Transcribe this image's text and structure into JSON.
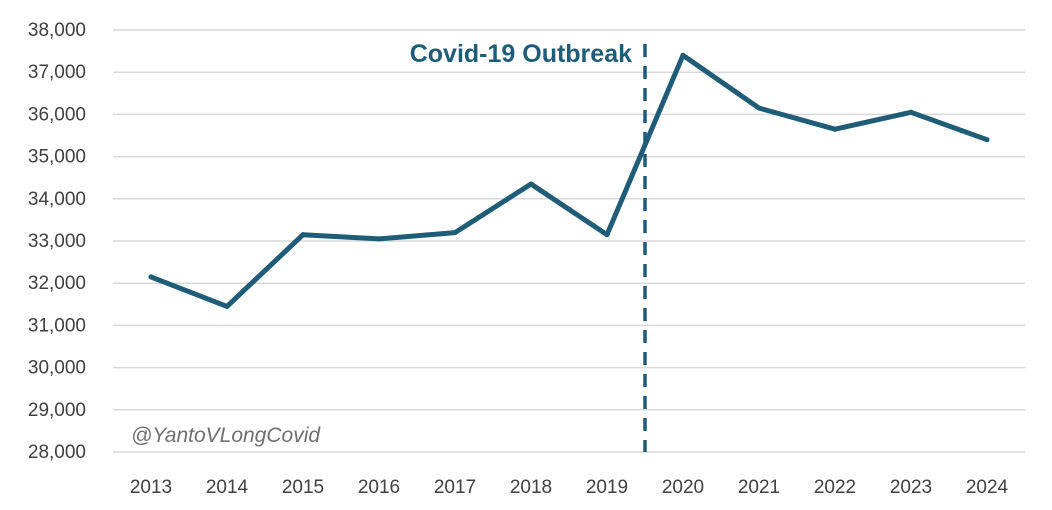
{
  "chart_data": {
    "type": "line",
    "title": "",
    "xlabel": "",
    "ylabel": "",
    "categories": [
      "2013",
      "2014",
      "2015",
      "2016",
      "2017",
      "2018",
      "2019",
      "2020",
      "2021",
      "2022",
      "2023",
      "2024"
    ],
    "series": [
      {
        "values": [
          32150,
          31450,
          33150,
          33050,
          33200,
          34350,
          33150,
          37400,
          36150,
          35650,
          36050,
          35400
        ]
      }
    ],
    "ylim": [
      28000,
      38000
    ],
    "yticks": [
      28000,
      29000,
      30000,
      31000,
      32000,
      33000,
      34000,
      35000,
      36000,
      37000,
      38000
    ],
    "ytick_labels": [
      "28,000",
      "29,000",
      "30,000",
      "31,000",
      "32,000",
      "33,000",
      "34,000",
      "35,000",
      "36,000",
      "37,000",
      "38,000"
    ],
    "grid": true,
    "series_color": "#1f5c78",
    "annotation": {
      "label": "Covid-19 Outbreak",
      "x_between": [
        "2019",
        "2020"
      ]
    },
    "watermark": "@YantoVLongCovid"
  }
}
